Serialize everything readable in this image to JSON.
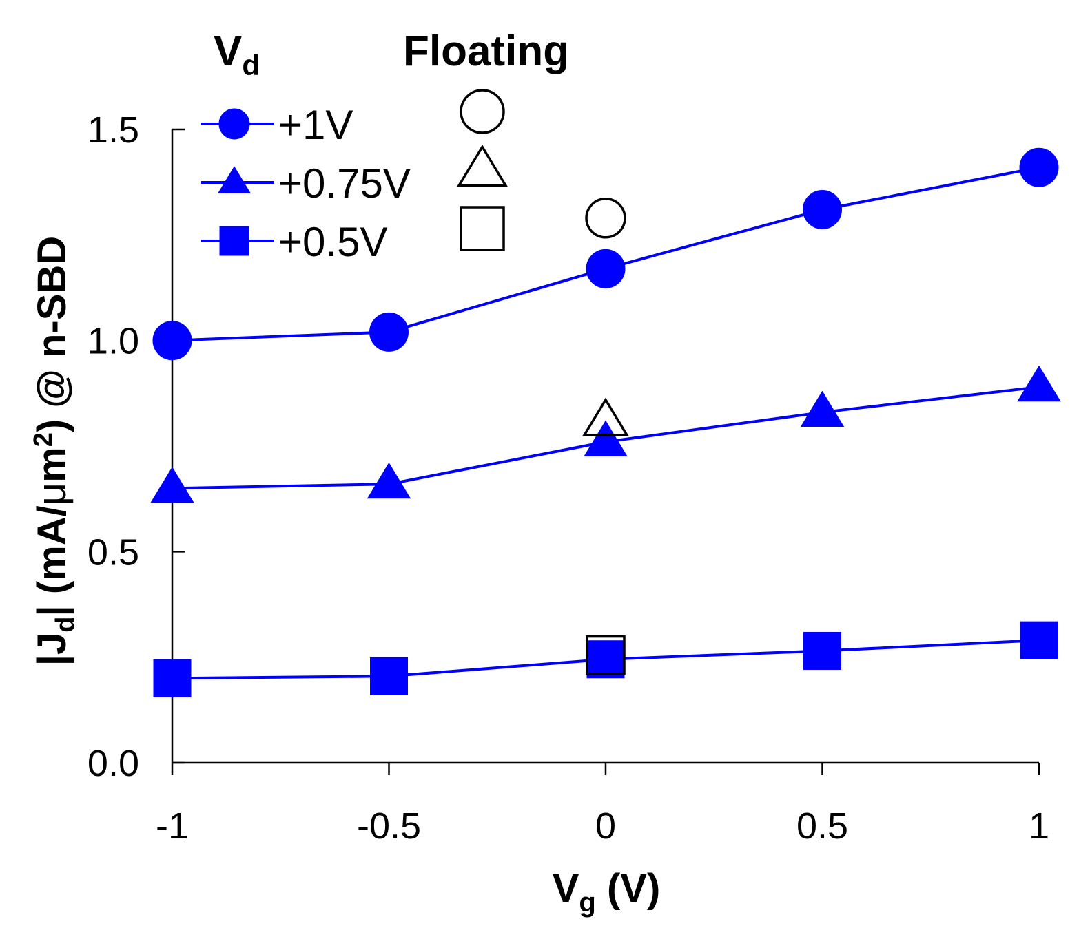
{
  "chart_data": {
    "type": "scatter",
    "x": [
      -1,
      -0.5,
      0,
      0.5,
      1
    ],
    "xlim": [
      -1,
      1
    ],
    "ylim": [
      0,
      1.5
    ],
    "x_ticks": [
      "-1",
      "-0.5",
      "0",
      "0.5",
      "1"
    ],
    "y_ticks": [
      "0.0",
      "0.5",
      "1.0",
      "1.5"
    ],
    "x_tick_values": [
      -1,
      -0.5,
      0,
      0.5,
      1
    ],
    "y_tick_values": [
      0,
      0.5,
      1.0,
      1.5
    ],
    "xlabel": {
      "main": "V",
      "sub": "g",
      "rest": " (V)"
    },
    "ylabel": {
      "pre": "|J",
      "sub": "d",
      "mid": "| (mA/",
      "mu": "μ",
      "m": "m",
      "sup": "2",
      "post": ") @ n-SBD"
    },
    "legend": {
      "vd_head": "V",
      "vd_head_sub": "d",
      "floating_head": "Floating",
      "placement": "top-left"
    },
    "line_color": "#0000ff",
    "series": [
      {
        "name": "+1V",
        "marker": "circle",
        "values": [
          1.0,
          1.02,
          1.17,
          1.31,
          1.41
        ]
      },
      {
        "name": "+0.75V",
        "marker": "triangle",
        "values": [
          0.65,
          0.66,
          0.76,
          0.83,
          0.89
        ]
      },
      {
        "name": "+0.5V",
        "marker": "square",
        "values": [
          0.2,
          0.205,
          0.245,
          0.265,
          0.29
        ]
      }
    ],
    "floating": [
      {
        "marker": "circle",
        "x": 0,
        "y": 1.29
      },
      {
        "marker": "triangle",
        "x": 0,
        "y": 0.81
      },
      {
        "marker": "square",
        "x": 0,
        "y": 0.255
      }
    ]
  }
}
